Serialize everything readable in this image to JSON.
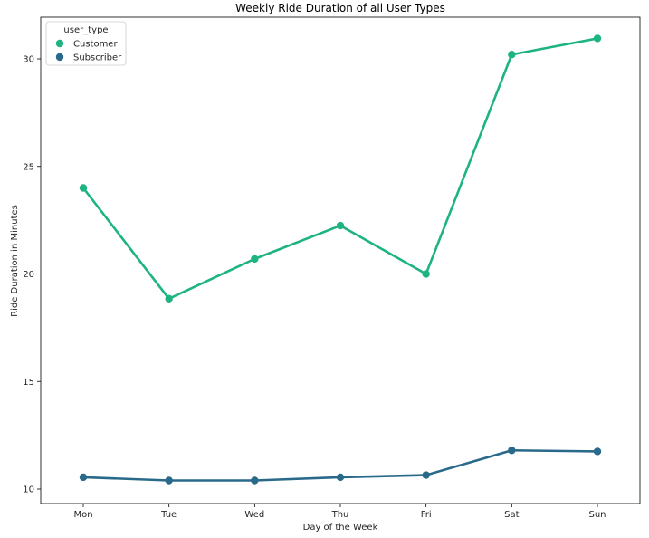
{
  "chart_data": {
    "type": "line",
    "title": "Weekly Ride Duration of all User Types",
    "xlabel": "Day of the Week",
    "ylabel": "Ride Duration in Minutes",
    "categories": [
      "Mon",
      "Tue",
      "Wed",
      "Thu",
      "Fri",
      "Sat",
      "Sun"
    ],
    "ylim": [
      9.7,
      32.0
    ],
    "yticks": [
      10,
      15,
      20,
      25,
      30
    ],
    "grid": false,
    "legend": {
      "title": "user_type",
      "placement": "top-left"
    },
    "series": [
      {
        "name": "Customer",
        "color": "#1db482",
        "values": [
          24.0,
          18.85,
          20.7,
          22.25,
          20.0,
          30.2,
          30.95
        ]
      },
      {
        "name": "Subscriber",
        "color": "#296a8a",
        "values": [
          10.55,
          10.4,
          10.4,
          10.55,
          10.65,
          11.8,
          11.75
        ]
      }
    ]
  }
}
